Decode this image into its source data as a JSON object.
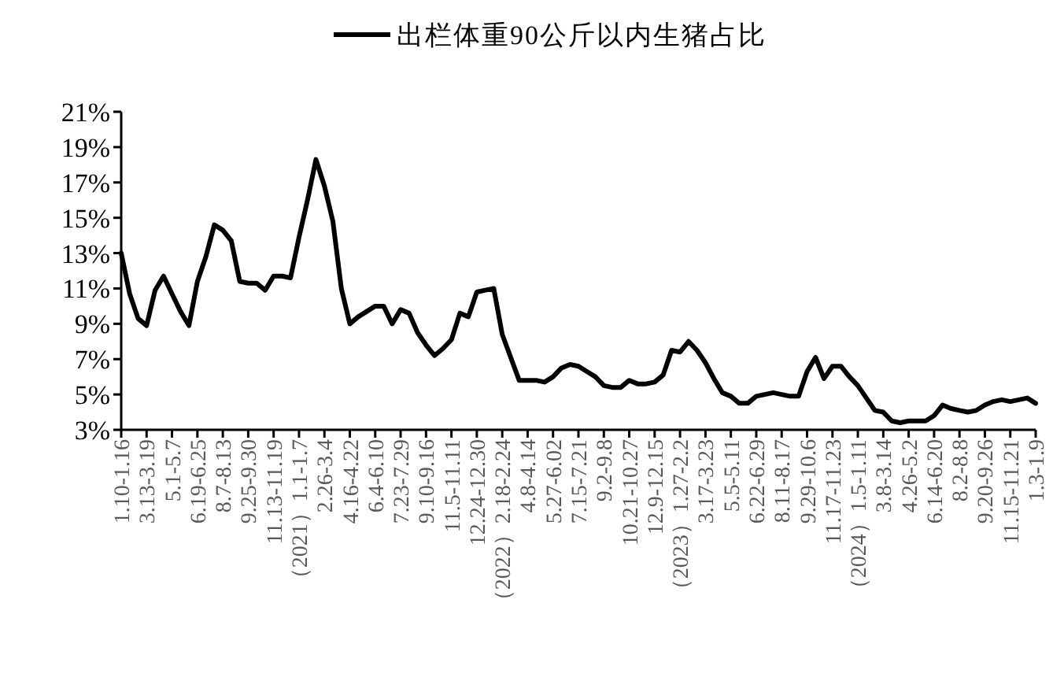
{
  "chart_data": {
    "type": "line",
    "categories": [
      "1.10-1.16",
      null,
      null,
      "3.13-3.19",
      null,
      null,
      "5.1-5.7",
      null,
      null,
      "6.19-6.25",
      null,
      null,
      "8.7-8.13",
      null,
      null,
      "9.25-9.30",
      null,
      null,
      "11.13-11.19",
      null,
      null,
      "（2021）1.1-1.7",
      null,
      null,
      "2.26-3.4",
      null,
      null,
      "4.16-4.22",
      null,
      null,
      "6.4-6.10",
      null,
      null,
      "7.23-7.29",
      null,
      null,
      "9.10-9.16",
      null,
      null,
      "11.5-11.11",
      null,
      null,
      "12.24-12.30",
      null,
      null,
      "（2022）2.18-2.24",
      null,
      null,
      "4.8-4.14",
      null,
      null,
      "5.27-6.02",
      null,
      null,
      "7.15-7.21",
      null,
      null,
      "9.2-9.8",
      null,
      null,
      "10.21-10.27",
      null,
      null,
      "12.9-12.15",
      null,
      null,
      "（2023）1.27-2.2",
      null,
      null,
      "3.17-3.23",
      null,
      null,
      "5.5-5.11",
      null,
      null,
      "6.22-6.29",
      null,
      null,
      "8.11-8.17",
      null,
      null,
      "9.29-10.6",
      null,
      null,
      "11.17-11.23",
      null,
      null,
      "（2024）1.5-1.11",
      null,
      null,
      "3.8-3.14",
      null,
      null,
      "4.26-5.2",
      null,
      null,
      "6.14-6.20",
      null,
      null,
      "8.2-8.8",
      null,
      null,
      "9.20-9.26",
      null,
      null,
      "11.15-11.21",
      null,
      null,
      "1.3-1.9"
    ],
    "series": [
      {
        "name": "出栏体重90公斤以内生猪占比",
        "color": "#000000",
        "values": [
          13.0,
          10.7,
          9.3,
          8.9,
          10.9,
          11.7,
          10.7,
          9.7,
          8.9,
          11.4,
          12.8,
          14.6,
          14.3,
          13.7,
          11.4,
          11.3,
          11.3,
          10.9,
          11.7,
          11.7,
          11.6,
          13.9,
          16.0,
          18.3,
          16.8,
          14.8,
          11.0,
          9.0,
          9.4,
          9.7,
          10.0,
          10.0,
          9.0,
          9.8,
          9.6,
          8.5,
          7.8,
          7.2,
          7.6,
          8.1,
          9.6,
          9.4,
          10.8,
          10.9,
          11.0,
          8.4,
          7.1,
          5.8,
          5.8,
          5.8,
          5.7,
          6.0,
          6.5,
          6.7,
          6.6,
          6.3,
          6.0,
          5.5,
          5.4,
          5.4,
          5.8,
          5.6,
          5.6,
          5.7,
          6.1,
          7.5,
          7.4,
          8.0,
          7.5,
          6.8,
          5.9,
          5.1,
          4.9,
          4.5,
          4.5,
          4.9,
          5.0,
          5.1,
          5.0,
          4.9,
          4.9,
          6.3,
          7.1,
          5.9,
          6.6,
          6.6,
          6.0,
          5.5,
          4.8,
          4.1,
          4.0,
          3.5,
          3.4,
          3.5,
          3.5,
          3.5,
          3.8,
          4.4,
          4.2,
          4.1,
          4.0,
          4.1,
          4.4,
          4.6,
          4.7,
          4.6,
          4.7,
          4.8,
          4.5
        ]
      }
    ],
    "ylim": [
      3,
      21
    ],
    "yticks": [
      {
        "value": 3,
        "label": "3%"
      },
      {
        "value": 5,
        "label": "5%"
      },
      {
        "value": 7,
        "label": "7%"
      },
      {
        "value": 9,
        "label": "9%"
      },
      {
        "value": 11,
        "label": "11%"
      },
      {
        "value": 13,
        "label": "13%"
      },
      {
        "value": 15,
        "label": "15%"
      },
      {
        "value": 17,
        "label": "17%"
      },
      {
        "value": 19,
        "label": "19%"
      },
      {
        "value": 21,
        "label": "21%"
      }
    ],
    "legend": "top",
    "grid": false,
    "marker": "none",
    "line_style": "solid"
  }
}
